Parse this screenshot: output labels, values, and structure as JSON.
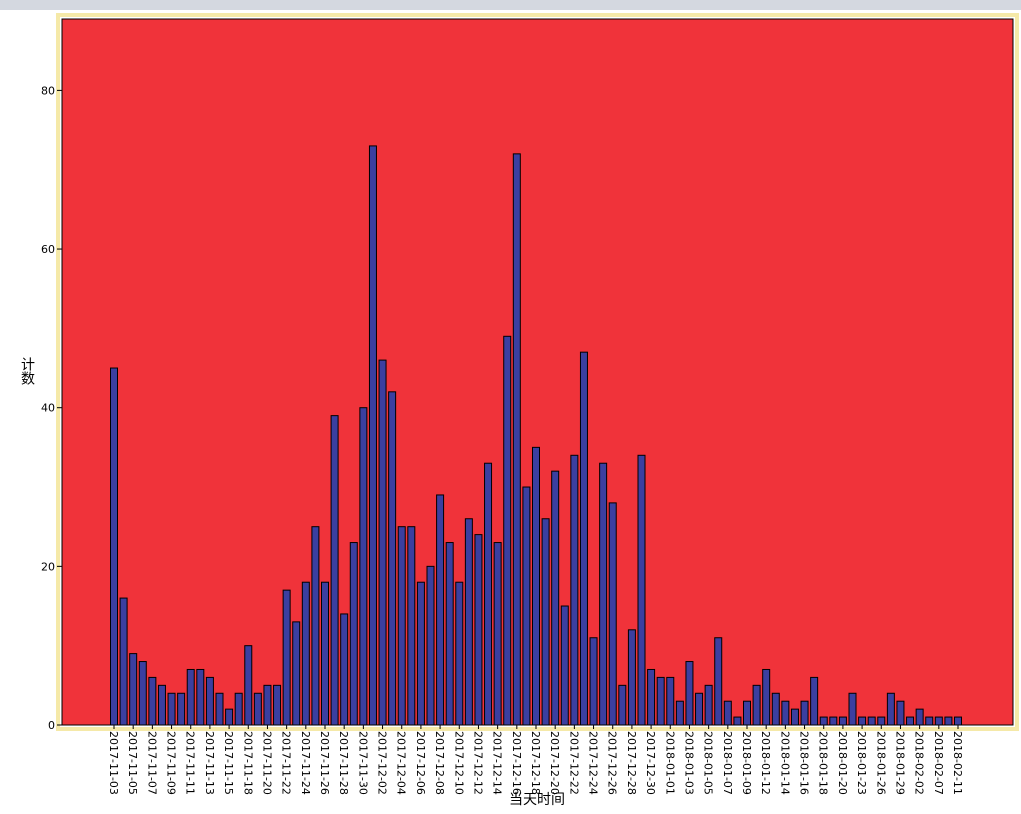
{
  "chart_data": {
    "type": "bar",
    "x_label": "当天时间",
    "y_label": "计数",
    "color": "#3b3fa0",
    "background": "#f0333a",
    "categories": [
      "2017-11-03",
      null,
      "2017-11-05",
      null,
      "2017-11-07",
      null,
      "2017-11-09",
      null,
      "2017-11-11",
      null,
      "2017-11-13",
      null,
      "2017-11-15",
      null,
      "2017-11-18",
      null,
      "2017-11-20",
      null,
      "2017-11-22",
      null,
      "2017-11-24",
      null,
      "2017-11-26",
      null,
      "2017-11-28",
      null,
      "2017-11-30",
      null,
      "2017-12-02",
      null,
      "2017-12-04",
      null,
      "2017-12-06",
      null,
      "2017-12-08",
      null,
      "2017-12-10",
      null,
      "2017-12-12",
      null,
      "2017-12-14",
      null,
      "2017-12-16",
      null,
      "2017-12-18",
      null,
      "2017-12-20",
      null,
      "2017-12-22",
      null,
      "2017-12-24",
      null,
      "2017-12-26",
      null,
      "2017-12-28",
      null,
      "2017-12-30",
      null,
      "2018-01-01",
      null,
      "2018-01-03",
      null,
      "2018-01-05",
      null,
      "2018-01-07",
      null,
      "2018-01-09",
      null,
      "2018-01-12",
      null,
      "2018-01-14",
      null,
      "2018-01-16",
      null,
      "2018-01-18",
      null,
      "2018-01-20",
      null,
      "2018-01-23",
      null,
      "2018-01-26",
      null,
      "2018-01-29",
      null,
      "2018-02-02",
      null,
      "2018-02-07",
      null,
      "2018-02-11"
    ],
    "values": [
      45,
      16,
      9,
      8,
      6,
      5,
      4,
      4,
      7,
      7,
      6,
      4,
      2,
      4,
      10,
      4,
      5,
      5,
      17,
      13,
      18,
      25,
      18,
      39,
      14,
      23,
      40,
      73,
      46,
      42,
      25,
      25,
      18,
      20,
      29,
      23,
      18,
      26,
      24,
      33,
      23,
      49,
      72,
      30,
      35,
      26,
      32,
      15,
      34,
      47,
      11,
      33,
      28,
      5,
      12,
      34,
      7,
      6,
      6,
      3,
      8,
      4,
      5,
      11,
      3,
      1,
      3,
      5,
      7,
      4,
      3,
      2,
      3,
      6,
      1,
      1,
      1,
      4,
      1,
      1,
      1,
      4,
      3,
      1,
      2,
      1,
      1,
      1,
      1
    ],
    "ylim": [
      0,
      89
    ],
    "yticks": [
      0,
      20,
      40,
      60,
      80
    ]
  }
}
